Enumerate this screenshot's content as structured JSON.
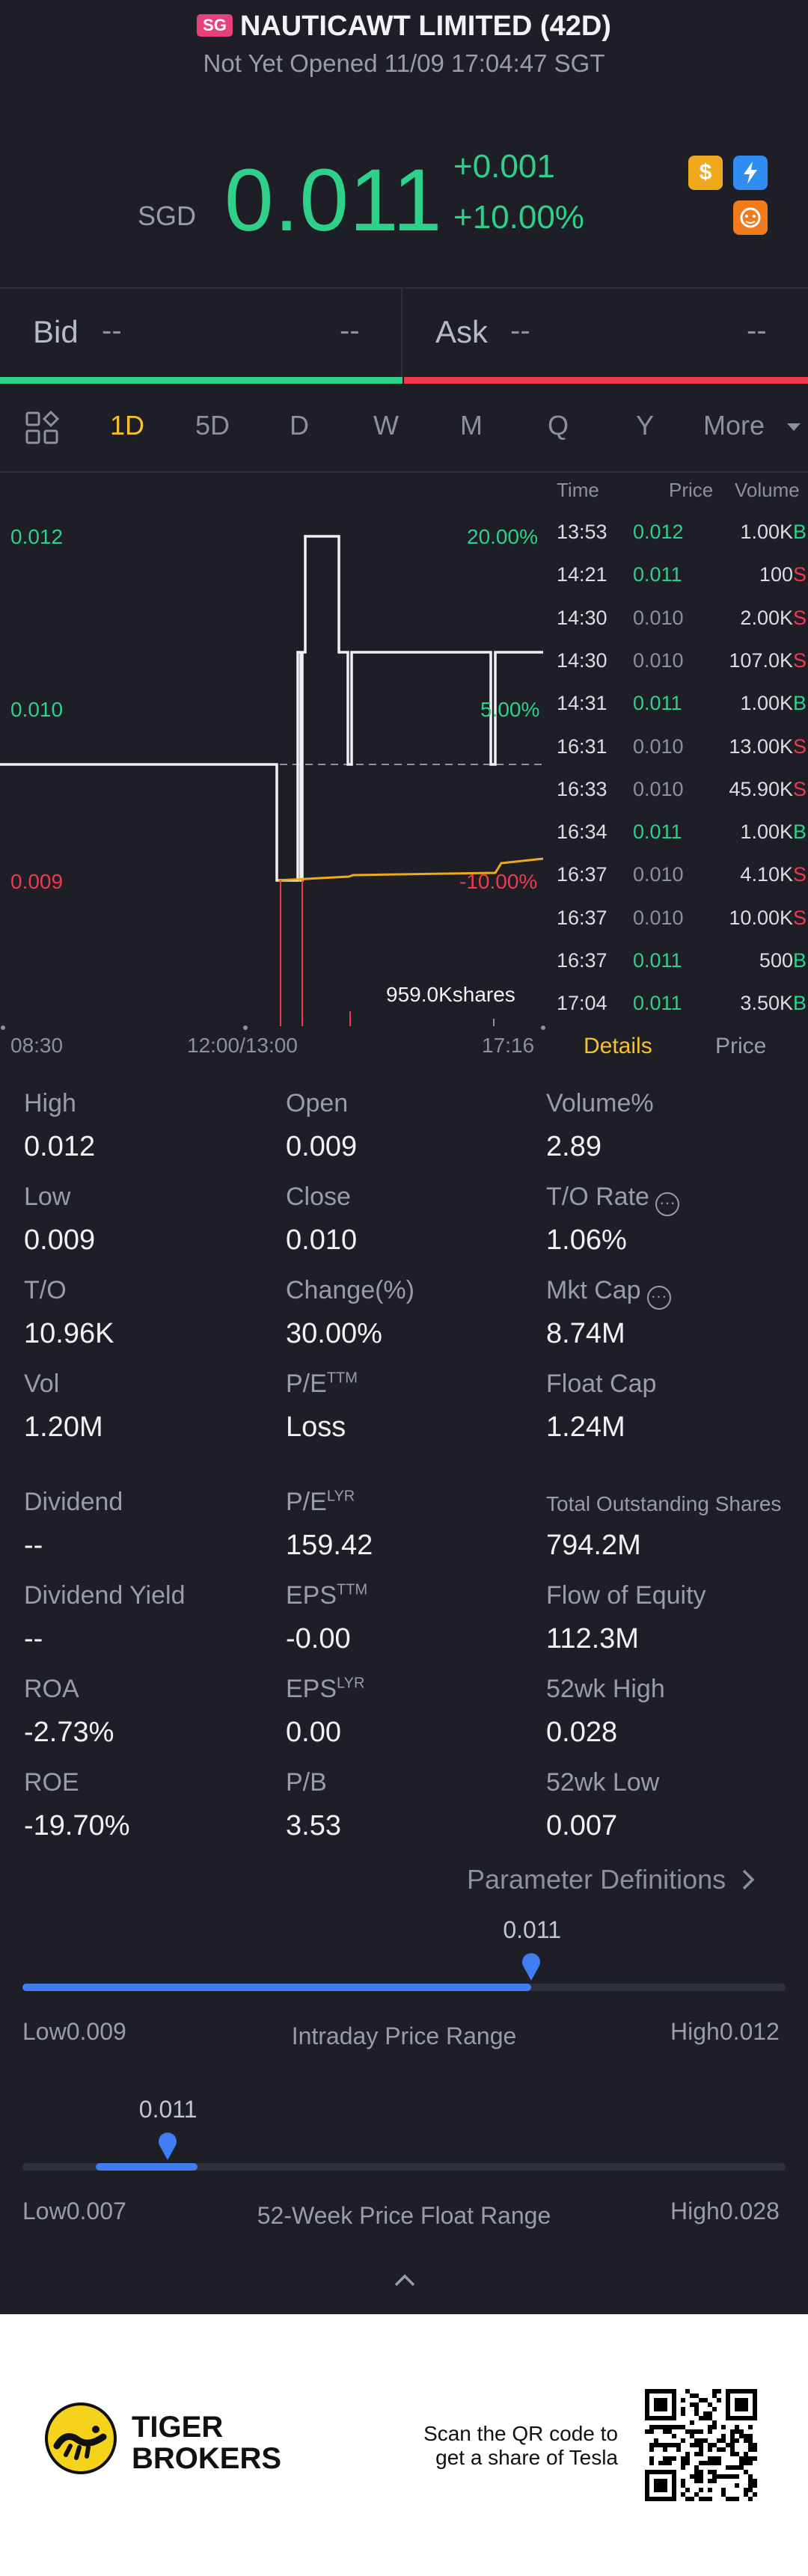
{
  "header": {
    "market_tag": "SG",
    "title": "NAUTICAWT LIMITED (42D)",
    "status": "Not Yet Opened 11/09 17:04:47 SGT"
  },
  "quote": {
    "currency": "SGD",
    "price": "0.011",
    "change": "+0.001",
    "change_pct": "+10.00%",
    "icons": [
      "dollar-icon",
      "flash-icon",
      "tiger-icon"
    ],
    "colors": {
      "up": "#2fd08a",
      "down": "#ef3a4e",
      "accent": "#f5c12e"
    }
  },
  "bidask": {
    "bid_label": "Bid",
    "bid_price": "--",
    "bid_size": "--",
    "ask_label": "Ask",
    "ask_price": "--",
    "ask_size": "--"
  },
  "tabs": [
    "1D",
    "5D",
    "D",
    "W",
    "M",
    "Q",
    "Y",
    "More"
  ],
  "active_tab": "1D",
  "chart": {
    "y_left": [
      "0.012",
      "0.010",
      "0.009"
    ],
    "y_right": [
      "20.00%",
      "5.00%",
      "-10.00%"
    ],
    "x_labels": [
      "08:30",
      "12:00/13:00",
      "17:16"
    ],
    "volume_label": "959.0Kshares"
  },
  "trades": {
    "headers": [
      "Time",
      "Price",
      "Volume"
    ],
    "rows": [
      {
        "time": "13:53",
        "price": "0.012",
        "dir": "up",
        "vol": "1.00K",
        "side": "B"
      },
      {
        "time": "14:21",
        "price": "0.011",
        "dir": "up",
        "vol": "100",
        "side": "S"
      },
      {
        "time": "14:30",
        "price": "0.010",
        "dir": "dn",
        "vol": "2.00K",
        "side": "S"
      },
      {
        "time": "14:30",
        "price": "0.010",
        "dir": "dn",
        "vol": "107.0K",
        "side": "S"
      },
      {
        "time": "14:31",
        "price": "0.011",
        "dir": "up",
        "vol": "1.00K",
        "side": "B"
      },
      {
        "time": "16:31",
        "price": "0.010",
        "dir": "dn",
        "vol": "13.00K",
        "side": "S"
      },
      {
        "time": "16:33",
        "price": "0.010",
        "dir": "dn",
        "vol": "45.90K",
        "side": "S"
      },
      {
        "time": "16:34",
        "price": "0.011",
        "dir": "up",
        "vol": "1.00K",
        "side": "B"
      },
      {
        "time": "16:37",
        "price": "0.010",
        "dir": "dn",
        "vol": "4.10K",
        "side": "S"
      },
      {
        "time": "16:37",
        "price": "0.010",
        "dir": "dn",
        "vol": "10.00K",
        "side": "S"
      },
      {
        "time": "16:37",
        "price": "0.011",
        "dir": "up",
        "vol": "500",
        "side": "B"
      },
      {
        "time": "17:04",
        "price": "0.011",
        "dir": "up",
        "vol": "3.50K",
        "side": "B"
      }
    ],
    "tab_details": "Details",
    "tab_price": "Price"
  },
  "stats": {
    "high_l": "High",
    "high_v": "0.012",
    "open_l": "Open",
    "open_v": "0.009",
    "volpct_l": "Volume%",
    "volpct_v": "2.89",
    "low_l": "Low",
    "low_v": "0.009",
    "close_l": "Close",
    "close_v": "0.010",
    "torate_l": "T/O Rate",
    "torate_v": "1.06%",
    "to_l": "T/O",
    "to_v": "10.96K",
    "change_l": "Change(%)",
    "change_v": "30.00%",
    "mktcap_l": "Mkt Cap",
    "mktcap_v": "8.74M",
    "vol_l": "Vol",
    "vol_v": "1.20M",
    "pe_ttm_l": "P/E",
    "pe_ttm_sup": "TTM",
    "pe_ttm_v": "Loss",
    "floatcap_l": "Float Cap",
    "floatcap_v": "1.24M",
    "div_l": "Dividend",
    "div_v": "--",
    "pe_lyr_l": "P/E",
    "pe_lyr_sup": "LYR",
    "pe_lyr_v": "159.42",
    "tos_l": "Total Outstanding Shares",
    "tos_v": "794.2M",
    "divy_l": "Dividend Yield",
    "divy_v": "--",
    "eps_ttm_l": "EPS",
    "eps_ttm_sup": "TTM",
    "eps_ttm_v": "-0.00",
    "foe_l": "Flow of Equity",
    "foe_v": "112.3M",
    "roa_l": "ROA",
    "roa_v": "-2.73%",
    "eps_lyr_l": "EPS",
    "eps_lyr_sup": "LYR",
    "eps_lyr_v": "0.00",
    "h52_l": "52wk High",
    "h52_v": "0.028",
    "roe_l": "ROE",
    "roe_v": "-19.70%",
    "pb_l": "P/B",
    "pb_v": "3.53",
    "l52_l": "52wk Low",
    "l52_v": "0.007",
    "param_defs": "Parameter Definitions"
  },
  "intraday_range": {
    "current": "0.011",
    "low_label": "Low",
    "low": "0.009",
    "title": "Intraday Price Range",
    "high_label": "High",
    "high": "0.012",
    "position": 0.667
  },
  "week52_range": {
    "current": "0.011",
    "low_label": "Low",
    "low": "0.007",
    "title": "52-Week Price Float Range",
    "high_label": "High",
    "high": "0.028",
    "position": 0.19
  },
  "footer": {
    "brand_line1": "TIGER",
    "brand_line2": "BROKERS",
    "qr_text1": "Scan the QR code to",
    "qr_text2": "get a share of Tesla"
  }
}
